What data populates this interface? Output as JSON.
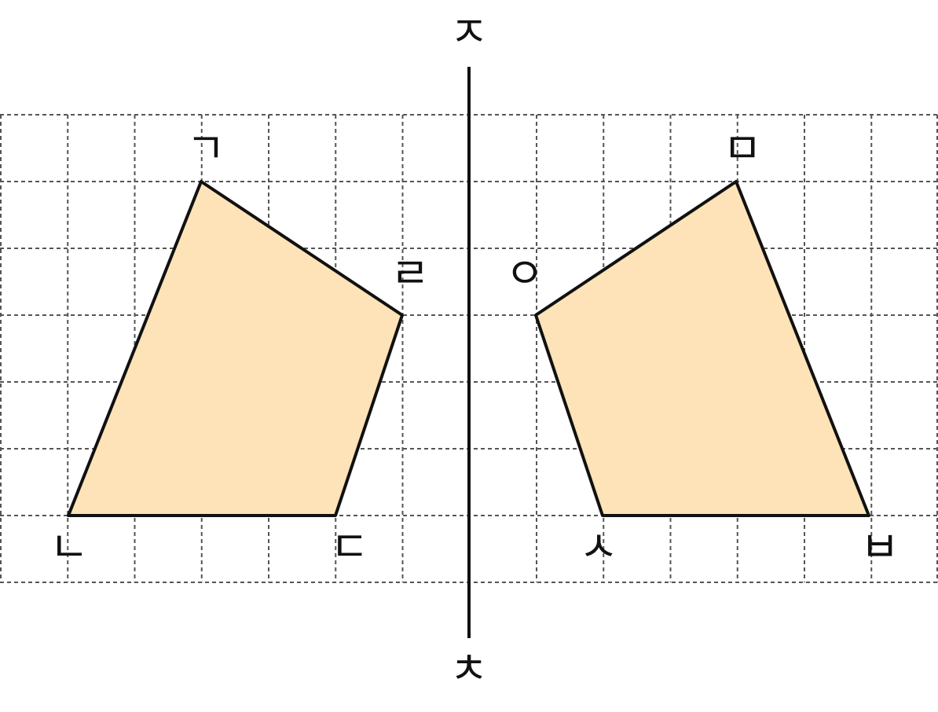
{
  "axis": {
    "top_label": "ㅈ",
    "bottom_label": "ㅊ"
  },
  "left_shape": {
    "vertices": [
      "ㄱ",
      "ㄴ",
      "ㄷ",
      "ㄹ"
    ]
  },
  "right_shape": {
    "vertices": [
      "ㅁ",
      "ㅂ",
      "ㅅ",
      "ㅇ"
    ]
  }
}
